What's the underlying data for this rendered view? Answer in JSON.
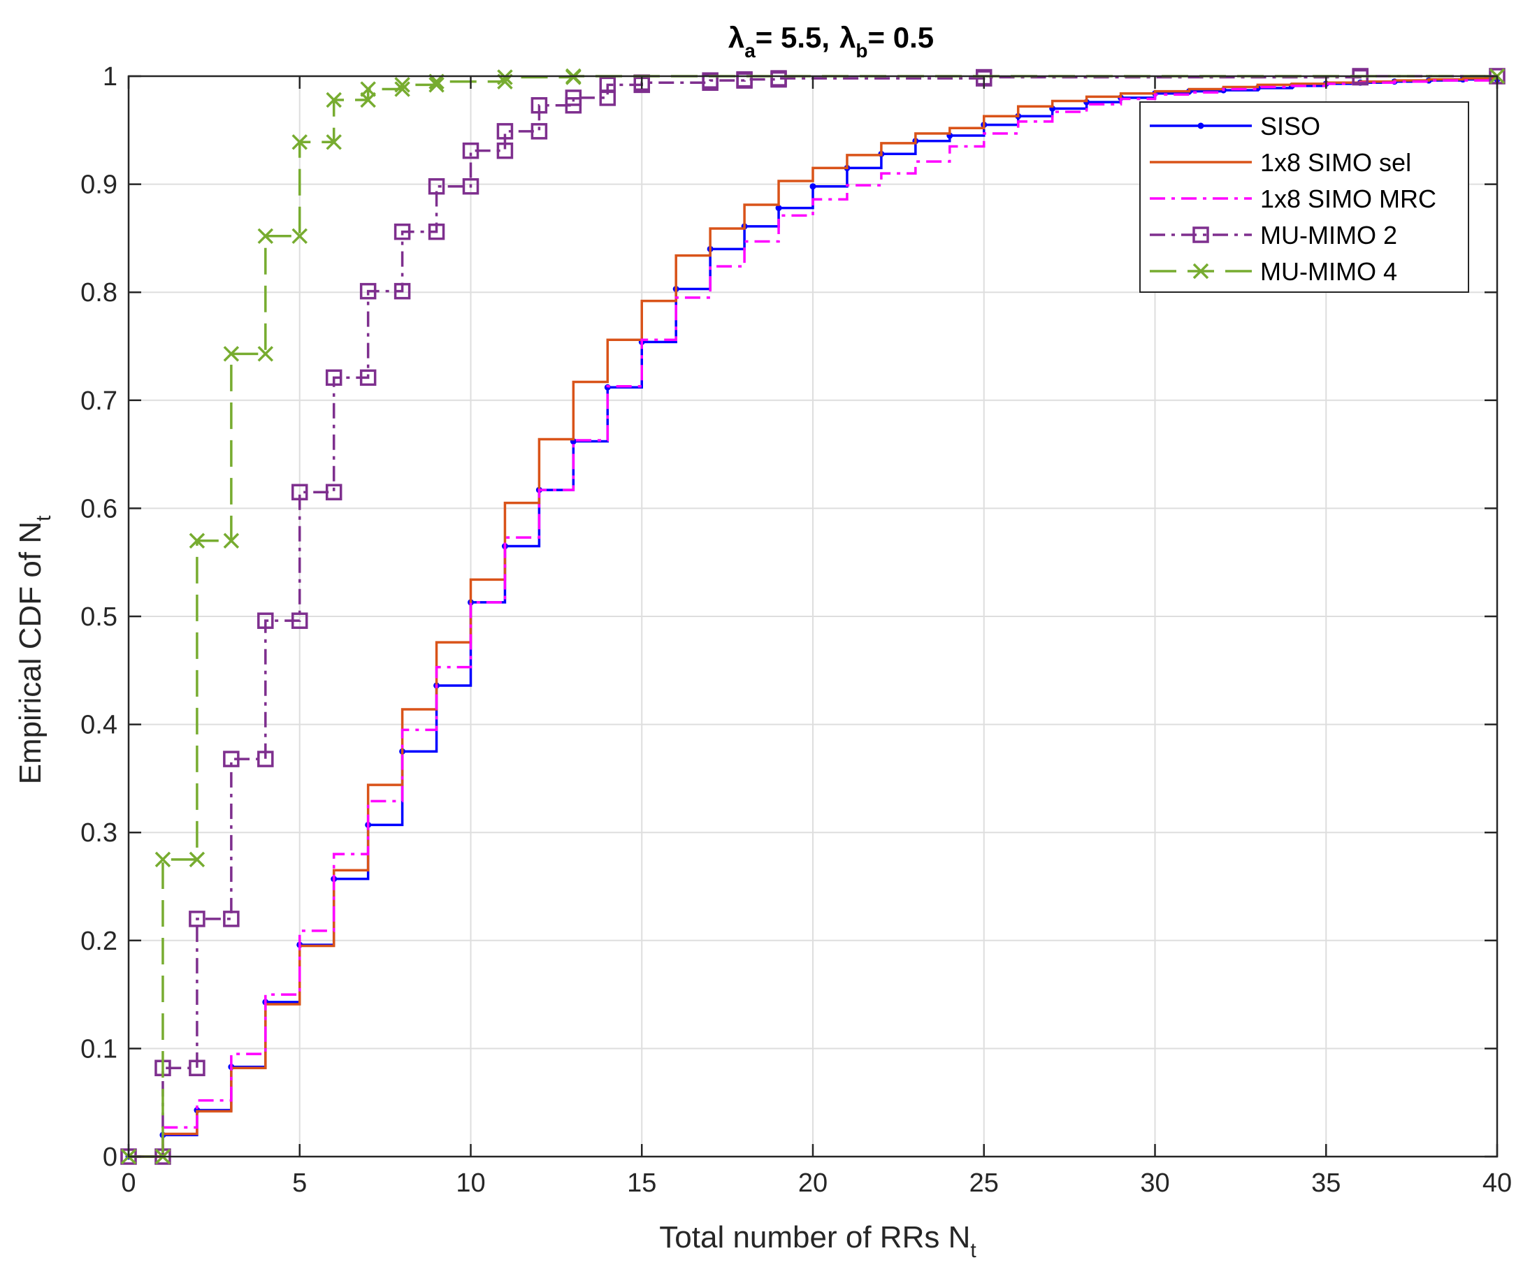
{
  "chart_data": {
    "type": "line",
    "title": {
      "lambda_symbol": "λ",
      "a_sub": "a",
      "a_value": "= 5.5,",
      "b_sub": "b",
      "b_value": "= 0.5"
    },
    "xlabel": {
      "main": "Total number of RRs N",
      "sub": "t"
    },
    "ylabel": {
      "main": "Empirical CDF of N",
      "sub": "t"
    },
    "xlim": [
      0,
      40
    ],
    "ylim": [
      0,
      1
    ],
    "grid": true,
    "legend_position": "top-right",
    "x_ticks": [
      0,
      5,
      10,
      15,
      20,
      25,
      30,
      35,
      40
    ],
    "y_ticks": [
      0,
      0.1,
      0.2,
      0.3,
      0.4,
      0.5,
      0.6,
      0.7,
      0.8,
      0.9,
      1
    ],
    "x_tick_labels": [
      "0",
      "5",
      "10",
      "15",
      "20",
      "25",
      "30",
      "35",
      "40"
    ],
    "y_tick_labels": [
      "0",
      "0.1",
      "0.2",
      "0.3",
      "0.4",
      "0.5",
      "0.6",
      "0.7",
      "0.8",
      "0.9",
      "1"
    ],
    "series": [
      {
        "name": "SISO",
        "color": "#0000ff",
        "dash": "",
        "marker": "dot",
        "x": [
          0,
          1,
          2,
          3,
          4,
          5,
          6,
          7,
          8,
          9,
          10,
          11,
          12,
          13,
          14,
          15,
          16,
          17,
          18,
          19,
          20,
          21,
          22,
          23,
          24,
          25,
          26,
          27,
          28,
          29,
          30,
          31,
          32,
          33,
          34,
          35,
          36,
          37,
          38,
          39,
          40
        ],
        "y": [
          0,
          0.02,
          0.043,
          0.083,
          0.143,
          0.196,
          0.257,
          0.307,
          0.375,
          0.436,
          0.513,
          0.565,
          0.617,
          0.662,
          0.712,
          0.754,
          0.803,
          0.84,
          0.861,
          0.878,
          0.898,
          0.915,
          0.928,
          0.94,
          0.945,
          0.955,
          0.963,
          0.97,
          0.976,
          0.98,
          0.984,
          0.986,
          0.987,
          0.989,
          0.991,
          0.993,
          0.994,
          0.995,
          0.996,
          0.997,
          0.997
        ]
      },
      {
        "name": "1x8 SIMO sel",
        "color": "#d95319",
        "dash": "",
        "marker": "none",
        "x": [
          0,
          1,
          2,
          3,
          4,
          5,
          6,
          7,
          8,
          9,
          10,
          11,
          12,
          13,
          14,
          15,
          16,
          17,
          18,
          19,
          20,
          21,
          22,
          23,
          24,
          25,
          26,
          27,
          28,
          29,
          30,
          31,
          32,
          33,
          34,
          35,
          36,
          37,
          38,
          39,
          40
        ],
        "y": [
          0,
          0.021,
          0.042,
          0.082,
          0.141,
          0.195,
          0.265,
          0.344,
          0.414,
          0.476,
          0.534,
          0.605,
          0.664,
          0.717,
          0.756,
          0.792,
          0.834,
          0.859,
          0.881,
          0.903,
          0.915,
          0.927,
          0.938,
          0.947,
          0.952,
          0.963,
          0.972,
          0.977,
          0.981,
          0.984,
          0.986,
          0.988,
          0.99,
          0.992,
          0.993,
          0.994,
          0.995,
          0.996,
          0.997,
          0.998,
          0.998
        ]
      },
      {
        "name": "1x8 SIMO MRC",
        "color": "#ff00ff",
        "dash": "22 9 5 9",
        "marker": "none",
        "x": [
          0,
          1,
          2,
          3,
          4,
          5,
          6,
          7,
          8,
          9,
          10,
          11,
          12,
          13,
          14,
          15,
          16,
          17,
          18,
          19,
          20,
          21,
          22,
          23,
          24,
          25,
          26,
          27,
          28,
          29,
          30,
          31,
          32,
          33,
          34,
          35,
          36,
          37,
          38,
          39,
          40
        ],
        "y": [
          0,
          0.027,
          0.052,
          0.095,
          0.15,
          0.209,
          0.28,
          0.329,
          0.395,
          0.453,
          0.513,
          0.573,
          0.617,
          0.663,
          0.713,
          0.756,
          0.795,
          0.824,
          0.847,
          0.871,
          0.886,
          0.899,
          0.91,
          0.921,
          0.935,
          0.947,
          0.958,
          0.967,
          0.974,
          0.979,
          0.983,
          0.985,
          0.988,
          0.99,
          0.991,
          0.993,
          0.994,
          0.995,
          0.996,
          0.996,
          0.997
        ]
      },
      {
        "name": "MU-MIMO 2",
        "color": "#7e2f8e",
        "dash": "22 9 5 9",
        "marker": "square",
        "x": [
          0,
          1,
          2,
          3,
          4,
          5,
          6,
          7,
          8,
          9,
          10,
          11,
          12,
          13,
          14,
          15,
          17,
          18,
          19,
          25,
          36,
          40
        ],
        "y": [
          0,
          0.082,
          0.22,
          0.368,
          0.496,
          0.615,
          0.721,
          0.801,
          0.856,
          0.898,
          0.931,
          0.949,
          0.973,
          0.98,
          0.992,
          0.994,
          0.996,
          0.997,
          0.998,
          0.999,
          1,
          1
        ]
      },
      {
        "name": "MU-MIMO 4",
        "color": "#77ac30",
        "dash": "38 16",
        "marker": "x",
        "x": [
          0,
          1,
          2,
          3,
          4,
          5,
          6,
          7,
          8,
          9,
          11,
          13,
          40
        ],
        "y": [
          0,
          0.275,
          0.57,
          0.743,
          0.852,
          0.939,
          0.978,
          0.988,
          0.992,
          0.995,
          0.999,
          1,
          1
        ]
      }
    ]
  }
}
